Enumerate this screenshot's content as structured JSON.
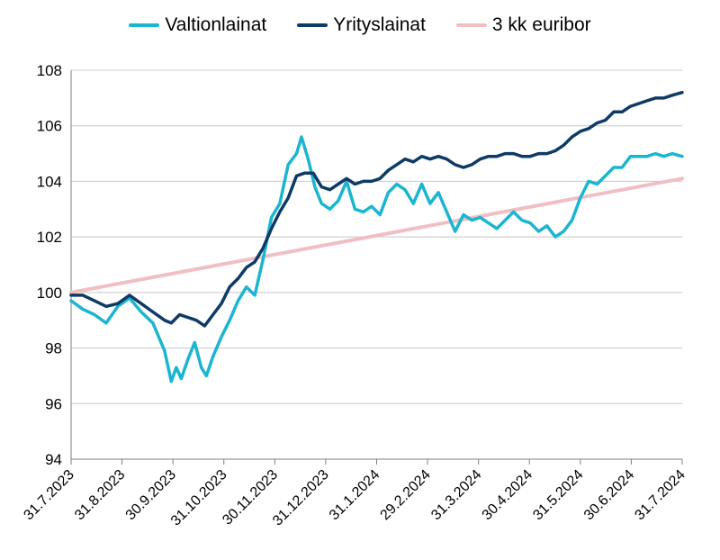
{
  "chart_data": {
    "type": "line",
    "title": "",
    "xlabel": "",
    "ylabel": "",
    "ylim": [
      94,
      108
    ],
    "yticks": [
      "94",
      "96",
      "98",
      "100",
      "102",
      "104",
      "106",
      "108"
    ],
    "x_ticks": [
      "31.7.2023",
      "31.8.2023",
      "30.9.2023",
      "31.10.2023",
      "30.11.2023",
      "31.12.2023",
      "31.1.2024",
      "29.2.2024",
      "31.3.2024",
      "30.4.2024",
      "31.5.2024",
      "30.6.2024",
      "31.7.2024"
    ],
    "grid": true,
    "legend_position": "top",
    "series": [
      {
        "name": "Valtionlainat",
        "color": "#1bb5d1",
        "points": [
          [
            0,
            99.7
          ],
          [
            7,
            99.4
          ],
          [
            14,
            99.2
          ],
          [
            21,
            98.9
          ],
          [
            28,
            99.5
          ],
          [
            35,
            99.8
          ],
          [
            42,
            99.3
          ],
          [
            49,
            98.9
          ],
          [
            56,
            97.9
          ],
          [
            60,
            96.8
          ],
          [
            63,
            97.3
          ],
          [
            66,
            96.9
          ],
          [
            70,
            97.6
          ],
          [
            74,
            98.2
          ],
          [
            78,
            97.3
          ],
          [
            81,
            97.0
          ],
          [
            85,
            97.7
          ],
          [
            90,
            98.4
          ],
          [
            95,
            99.0
          ],
          [
            100,
            99.7
          ],
          [
            105,
            100.2
          ],
          [
            110,
            99.9
          ],
          [
            115,
            101.2
          ],
          [
            120,
            102.7
          ],
          [
            125,
            103.2
          ],
          [
            130,
            104.6
          ],
          [
            135,
            105.0
          ],
          [
            138,
            105.6
          ],
          [
            142,
            104.8
          ],
          [
            146,
            103.8
          ],
          [
            150,
            103.2
          ],
          [
            155,
            103.0
          ],
          [
            160,
            103.3
          ],
          [
            165,
            104.0
          ],
          [
            170,
            103.0
          ],
          [
            175,
            102.9
          ],
          [
            180,
            103.1
          ],
          [
            185,
            102.8
          ],
          [
            190,
            103.6
          ],
          [
            195,
            103.9
          ],
          [
            200,
            103.7
          ],
          [
            205,
            103.2
          ],
          [
            210,
            103.9
          ],
          [
            215,
            103.2
          ],
          [
            220,
            103.6
          ],
          [
            225,
            102.9
          ],
          [
            230,
            102.2
          ],
          [
            235,
            102.8
          ],
          [
            240,
            102.6
          ],
          [
            245,
            102.7
          ],
          [
            250,
            102.5
          ],
          [
            255,
            102.3
          ],
          [
            260,
            102.6
          ],
          [
            265,
            102.9
          ],
          [
            270,
            102.6
          ],
          [
            275,
            102.5
          ],
          [
            280,
            102.2
          ],
          [
            285,
            102.4
          ],
          [
            290,
            102.0
          ],
          [
            295,
            102.2
          ],
          [
            300,
            102.6
          ],
          [
            305,
            103.4
          ],
          [
            310,
            104.0
          ],
          [
            315,
            103.9
          ],
          [
            320,
            104.2
          ],
          [
            325,
            104.5
          ],
          [
            330,
            104.5
          ],
          [
            335,
            104.9
          ],
          [
            340,
            104.9
          ],
          [
            345,
            104.9
          ],
          [
            350,
            105.0
          ],
          [
            355,
            104.9
          ],
          [
            360,
            105.0
          ],
          [
            366,
            104.9
          ]
        ]
      },
      {
        "name": "Yrityslainat",
        "color": "#0e3a66",
        "points": [
          [
            0,
            99.9
          ],
          [
            7,
            99.9
          ],
          [
            14,
            99.7
          ],
          [
            21,
            99.5
          ],
          [
            28,
            99.6
          ],
          [
            35,
            99.9
          ],
          [
            42,
            99.6
          ],
          [
            49,
            99.3
          ],
          [
            56,
            99.0
          ],
          [
            60,
            98.9
          ],
          [
            65,
            99.2
          ],
          [
            70,
            99.1
          ],
          [
            75,
            99.0
          ],
          [
            80,
            98.8
          ],
          [
            85,
            99.2
          ],
          [
            90,
            99.6
          ],
          [
            95,
            100.2
          ],
          [
            100,
            100.5
          ],
          [
            105,
            100.9
          ],
          [
            110,
            101.1
          ],
          [
            115,
            101.6
          ],
          [
            120,
            102.3
          ],
          [
            125,
            102.9
          ],
          [
            130,
            103.4
          ],
          [
            135,
            104.2
          ],
          [
            140,
            104.3
          ],
          [
            145,
            104.3
          ],
          [
            150,
            103.8
          ],
          [
            155,
            103.7
          ],
          [
            160,
            103.9
          ],
          [
            165,
            104.1
          ],
          [
            170,
            103.9
          ],
          [
            175,
            104.0
          ],
          [
            180,
            104.0
          ],
          [
            185,
            104.1
          ],
          [
            190,
            104.4
          ],
          [
            195,
            104.6
          ],
          [
            200,
            104.8
          ],
          [
            205,
            104.7
          ],
          [
            210,
            104.9
          ],
          [
            215,
            104.8
          ],
          [
            220,
            104.9
          ],
          [
            225,
            104.8
          ],
          [
            230,
            104.6
          ],
          [
            235,
            104.5
          ],
          [
            240,
            104.6
          ],
          [
            245,
            104.8
          ],
          [
            250,
            104.9
          ],
          [
            255,
            104.9
          ],
          [
            260,
            105.0
          ],
          [
            265,
            105.0
          ],
          [
            270,
            104.9
          ],
          [
            275,
            104.9
          ],
          [
            280,
            105.0
          ],
          [
            285,
            105.0
          ],
          [
            290,
            105.1
          ],
          [
            295,
            105.3
          ],
          [
            300,
            105.6
          ],
          [
            305,
            105.8
          ],
          [
            310,
            105.9
          ],
          [
            315,
            106.1
          ],
          [
            320,
            106.2
          ],
          [
            325,
            106.5
          ],
          [
            330,
            106.5
          ],
          [
            335,
            106.7
          ],
          [
            340,
            106.8
          ],
          [
            345,
            106.9
          ],
          [
            350,
            107.0
          ],
          [
            355,
            107.0
          ],
          [
            360,
            107.1
          ],
          [
            366,
            107.2
          ]
        ]
      },
      {
        "name": "3 kk euribor",
        "color": "#f0bfc3",
        "points": [
          [
            0,
            100.0
          ],
          [
            366,
            104.1
          ]
        ]
      }
    ]
  }
}
